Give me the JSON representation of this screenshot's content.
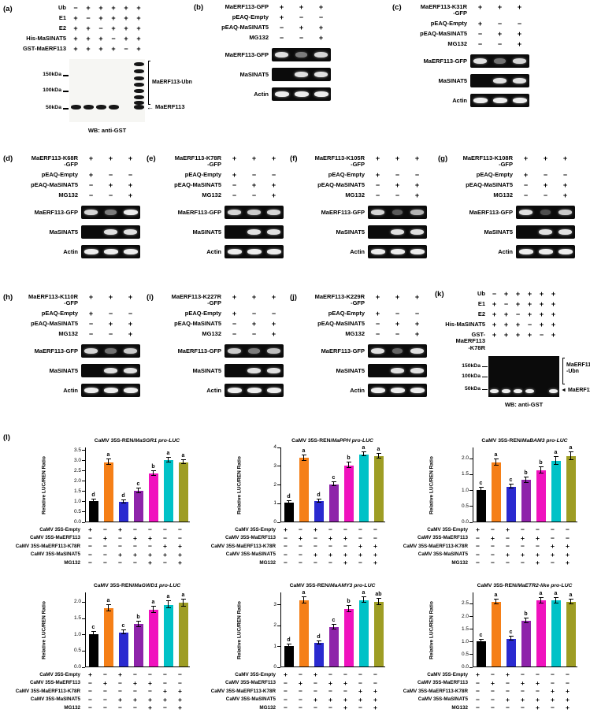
{
  "figure": {
    "panel_l_tag": "(l)",
    "panel_a": {
      "tag": "(a)",
      "matrix": [
        {
          "label": "Ub",
          "signs": [
            "−",
            "+",
            "+",
            "+",
            "+",
            "+"
          ]
        },
        {
          "label": "E1",
          "signs": [
            "+",
            "−",
            "+",
            "+",
            "+",
            "+"
          ]
        },
        {
          "label": "E2",
          "signs": [
            "+",
            "+",
            "−",
            "+",
            "+",
            "+"
          ]
        },
        {
          "label": "His-MaSINAT5",
          "signs": [
            "+",
            "+",
            "+",
            "−",
            "+",
            "+"
          ]
        },
        {
          "label": "GST-MaERF113",
          "signs": [
            "+",
            "+",
            "+",
            "+",
            "−",
            "+"
          ]
        }
      ],
      "markers": [
        "150kDa",
        "100kDa",
        "50kDa"
      ],
      "ubn_label": "MaERF113-Ubn",
      "arrow": "←",
      "arrow_label": "MaERF113",
      "wb": "WB: anti-GST"
    },
    "panel_k": {
      "tag": "(k)",
      "matrix": [
        {
          "label": "Ub",
          "signs": [
            "−",
            "+",
            "+",
            "+",
            "+",
            "+"
          ]
        },
        {
          "label": "E1",
          "signs": [
            "+",
            "−",
            "+",
            "+",
            "+",
            "+"
          ]
        },
        {
          "label": "E2",
          "signs": [
            "+",
            "+",
            "−",
            "+",
            "+",
            "+"
          ]
        },
        {
          "label": "His-MaSINAT5",
          "signs": [
            "+",
            "+",
            "+",
            "−",
            "+",
            "+"
          ]
        },
        {
          "label": "GST-MaERF113\n-K78R",
          "signs": [
            "+",
            "+",
            "+",
            "+",
            "−",
            "+"
          ]
        }
      ],
      "markers": [
        "150kDa",
        "100kDa",
        "50kDa"
      ],
      "ubn_label": "MaERF113\n-Ubn",
      "arrow": "◄",
      "arrow_label": "MaERF113",
      "wb": "WB: anti-GST"
    },
    "gfp_panels": [
      {
        "tag": "(b)",
        "rows": [
          {
            "label": "MaERF113-GFP",
            "signs": [
              "+",
              "+",
              "+"
            ]
          },
          {
            "label": "pEAQ-Empty",
            "signs": [
              "+",
              "−",
              "−"
            ]
          },
          {
            "label": "pEAQ-MaSINAT5",
            "signs": [
              "−",
              "+",
              "+"
            ]
          },
          {
            "label": "MG132",
            "signs": [
              "−",
              "−",
              "+"
            ]
          }
        ],
        "blots": [
          {
            "label": "MaERF113-GFP",
            "bands": [
              0.95,
              0.5,
              0.9
            ]
          },
          {
            "label": "MaSINAT5",
            "bands": [
              0,
              0.95,
              0.95
            ]
          },
          {
            "label": "Actin",
            "bands": [
              1,
              1,
              1
            ]
          }
        ]
      },
      {
        "tag": "(c)",
        "rows": [
          {
            "label": "MaERF113-K31R\n-GFP",
            "signs": [
              "+",
              "+",
              "+"
            ]
          },
          {
            "label": "pEAQ-Empty",
            "signs": [
              "+",
              "−",
              "−"
            ]
          },
          {
            "label": "pEAQ-MaSINAT5",
            "signs": [
              "−",
              "+",
              "+"
            ]
          },
          {
            "label": "MG132",
            "signs": [
              "−",
              "−",
              "+"
            ]
          }
        ],
        "blots": [
          {
            "label": "MaERF113-GFP",
            "bands": [
              0.95,
              0.45,
              0.9
            ]
          },
          {
            "label": "MaSINAT5",
            "bands": [
              0,
              0.95,
              0.95
            ]
          },
          {
            "label": "Actin",
            "bands": [
              1,
              1,
              1
            ]
          }
        ]
      },
      {
        "tag": "(d)",
        "rows": [
          {
            "label": "MaERF113-K68R\n-GFP",
            "signs": [
              "+",
              "+",
              "+"
            ]
          },
          {
            "label": "pEAQ-Empty",
            "signs": [
              "+",
              "−",
              "−"
            ]
          },
          {
            "label": "pEAQ-MaSINAT5",
            "signs": [
              "−",
              "+",
              "+"
            ]
          },
          {
            "label": "MG132",
            "signs": [
              "−",
              "−",
              "+"
            ]
          }
        ],
        "blots": [
          {
            "label": "MaERF113-GFP",
            "bands": [
              0.9,
              0.5,
              1
            ]
          },
          {
            "label": "MaSINAT5",
            "bands": [
              0,
              0.95,
              0.95
            ]
          },
          {
            "label": "Actin",
            "bands": [
              1,
              1,
              1
            ]
          }
        ]
      },
      {
        "tag": "(e)",
        "rows": [
          {
            "label": "MaERF113-K78R\n-GFP",
            "signs": [
              "+",
              "+",
              "+"
            ]
          },
          {
            "label": "pEAQ-Empty",
            "signs": [
              "+",
              "−",
              "−"
            ]
          },
          {
            "label": "pEAQ-MaSINAT5",
            "signs": [
              "−",
              "+",
              "+"
            ]
          },
          {
            "label": "MG132",
            "signs": [
              "−",
              "−",
              "+"
            ]
          }
        ],
        "blots": [
          {
            "label": "MaERF113-GFP",
            "bands": [
              0.9,
              0.85,
              0.9
            ]
          },
          {
            "label": "MaSINAT5",
            "bands": [
              0,
              0.95,
              0.95
            ]
          },
          {
            "label": "Actin",
            "bands": [
              1,
              1,
              1
            ]
          }
        ]
      },
      {
        "tag": "(f)",
        "rows": [
          {
            "label": "MaERF113-K105R\n-GFP",
            "signs": [
              "+",
              "+",
              "+"
            ]
          },
          {
            "label": "pEAQ-Empty",
            "signs": [
              "+",
              "−",
              "−"
            ]
          },
          {
            "label": "pEAQ-MaSINAT5",
            "signs": [
              "−",
              "+",
              "+"
            ]
          },
          {
            "label": "MG132",
            "signs": [
              "−",
              "−",
              "+"
            ]
          }
        ],
        "blots": [
          {
            "label": "MaERF113-GFP",
            "bands": [
              0.9,
              0.35,
              0.75
            ]
          },
          {
            "label": "MaSINAT5",
            "bands": [
              0,
              0.95,
              0.95
            ]
          },
          {
            "label": "Actin",
            "bands": [
              1,
              1,
              1
            ]
          }
        ]
      },
      {
        "tag": "(g)",
        "rows": [
          {
            "label": "MaERF113-K108R\n-GFP",
            "signs": [
              "+",
              "+",
              "+"
            ]
          },
          {
            "label": "pEAQ-Empty",
            "signs": [
              "+",
              "−",
              "−"
            ]
          },
          {
            "label": "pEAQ-MaSINAT5",
            "signs": [
              "−",
              "+",
              "+"
            ]
          },
          {
            "label": "MG132",
            "signs": [
              "−",
              "−",
              "+"
            ]
          }
        ],
        "blots": [
          {
            "label": "MaERF113-GFP",
            "bands": [
              0.95,
              0.3,
              0.85
            ]
          },
          {
            "label": "MaSINAT5",
            "bands": [
              0,
              0.95,
              0.95
            ]
          },
          {
            "label": "Actin",
            "bands": [
              1,
              1,
              1
            ]
          }
        ]
      },
      {
        "tag": "(h)",
        "rows": [
          {
            "label": "MaERF113-K110R\n-GFP",
            "signs": [
              "+",
              "+",
              "+"
            ]
          },
          {
            "label": "pEAQ-Empty",
            "signs": [
              "+",
              "−",
              "−"
            ]
          },
          {
            "label": "pEAQ-MaSINAT5",
            "signs": [
              "−",
              "+",
              "+"
            ]
          },
          {
            "label": "MG132",
            "signs": [
              "−",
              "−",
              "+"
            ]
          }
        ],
        "blots": [
          {
            "label": "MaERF113-GFP",
            "bands": [
              0.9,
              0.45,
              0.85
            ]
          },
          {
            "label": "MaSINAT5",
            "bands": [
              0,
              0.95,
              0.95
            ]
          },
          {
            "label": "Actin",
            "bands": [
              1,
              1,
              1
            ]
          }
        ]
      },
      {
        "tag": "(i)",
        "rows": [
          {
            "label": "MaERF113-K227R\n-GFP",
            "signs": [
              "+",
              "+",
              "+"
            ]
          },
          {
            "label": "pEAQ-Empty",
            "signs": [
              "+",
              "−",
              "−"
            ]
          },
          {
            "label": "pEAQ-MaSINAT5",
            "signs": [
              "−",
              "+",
              "+"
            ]
          },
          {
            "label": "MG132",
            "signs": [
              "−",
              "−",
              "+"
            ]
          }
        ],
        "blots": [
          {
            "label": "MaERF113-GFP",
            "bands": [
              0.85,
              0.5,
              0.8
            ]
          },
          {
            "label": "MaSINAT5",
            "bands": [
              0,
              0.95,
              0.95
            ]
          },
          {
            "label": "Actin",
            "bands": [
              1,
              1,
              1
            ]
          }
        ]
      },
      {
        "tag": "(j)",
        "rows": [
          {
            "label": "MaERF113-K229R\n-GFP",
            "signs": [
              "+",
              "+",
              "+"
            ]
          },
          {
            "label": "pEAQ-Empty",
            "signs": [
              "+",
              "−",
              "−"
            ]
          },
          {
            "label": "pEAQ-MaSINAT5",
            "signs": [
              "−",
              "+",
              "+"
            ]
          },
          {
            "label": "MG132",
            "signs": [
              "−",
              "−",
              "+"
            ]
          }
        ],
        "blots": [
          {
            "label": "MaERF113-GFP",
            "bands": [
              0.95,
              0.4,
              0.95
            ]
          },
          {
            "label": "MaSINAT5",
            "bands": [
              0,
              0.95,
              0.95
            ]
          },
          {
            "label": "Actin",
            "bands": [
              1,
              1,
              1
            ]
          }
        ]
      }
    ]
  },
  "chart_data": {
    "type": "bar",
    "ylabel": "Relative LUC/REN Ratio",
    "legend": null,
    "grid": false,
    "bar_colors": [
      "#000000",
      "#f57f17",
      "#2a2ad0",
      "#8e24aa",
      "#f012be",
      "#00c2c7",
      "#9e9d24"
    ],
    "conditions": [
      {
        "label": "CaMV 35S-Empty",
        "signs": [
          "+",
          "−",
          "+",
          "−",
          "−",
          "−",
          "−"
        ]
      },
      {
        "label": "CaMV 35S-MaERF113",
        "signs": [
          "−",
          "+",
          "−",
          "+",
          "+",
          "−",
          "−"
        ]
      },
      {
        "label": "CaMV 35S-MaERF113-K78R",
        "signs": [
          "−",
          "−",
          "−",
          "−",
          "−",
          "+",
          "+"
        ]
      },
      {
        "label": "CaMV 35S-MaSINAT5",
        "signs": [
          "−",
          "−",
          "+",
          "+",
          "+",
          "+",
          "+"
        ]
      },
      {
        "label": "MG132",
        "signs": [
          "−",
          "−",
          "−",
          "−",
          "+",
          "−",
          "+"
        ]
      }
    ],
    "charts": [
      {
        "title_prefix": "CaMV 35S-REN/",
        "title_gene": "MaSGR1 pro-LUC",
        "ymax": 3.65,
        "yticks": [
          "0.0",
          "0.5",
          "1.0",
          "1.5",
          "2.0",
          "2.5",
          "3.0",
          "3.5"
        ],
        "ytick_vals": [
          0,
          0.5,
          1,
          1.5,
          2,
          2.5,
          3,
          3.5
        ],
        "values": [
          1.0,
          2.9,
          0.95,
          1.5,
          2.35,
          3.0,
          2.9
        ],
        "errors": [
          0.07,
          0.12,
          0.07,
          0.1,
          0.12,
          0.1,
          0.1
        ],
        "letters": [
          "d",
          "a",
          "d",
          "c",
          "b",
          "a",
          "a"
        ]
      },
      {
        "title_prefix": "CaMV 35S-REN/",
        "title_gene": "MaPPH pro-LUC",
        "ymax": 4.0,
        "yticks": [
          "0",
          "1",
          "2",
          "3",
          "4"
        ],
        "ytick_vals": [
          0,
          1,
          2,
          3,
          4
        ],
        "values": [
          1.0,
          3.4,
          1.1,
          2.0,
          3.0,
          3.6,
          3.5
        ],
        "errors": [
          0.08,
          0.15,
          0.08,
          0.12,
          0.15,
          0.12,
          0.12
        ],
        "letters": [
          "d",
          "a",
          "d",
          "c",
          "b",
          "a",
          "a"
        ]
      },
      {
        "title_prefix": "CaMV 35S-REN/",
        "title_gene": "MaBAM3 pro-LUC",
        "ymax": 2.35,
        "yticks": [
          "0.0",
          "0.5",
          "1.0",
          "1.5",
          "2.0"
        ],
        "ytick_vals": [
          0,
          0.5,
          1,
          1.5,
          2
        ],
        "values": [
          1.0,
          1.85,
          1.1,
          1.3,
          1.6,
          1.9,
          2.05
        ],
        "errors": [
          0.06,
          0.1,
          0.07,
          0.08,
          0.1,
          0.12,
          0.12
        ],
        "letters": [
          "c",
          "a",
          "c",
          "b",
          "b",
          "a",
          "a"
        ]
      },
      {
        "title_prefix": "CaMV 35S-REN/",
        "title_gene": "MaGWD1 pro-LUC",
        "ymax": 2.3,
        "yticks": [
          "0.0",
          "0.5",
          "1.0",
          "1.5",
          "2.0"
        ],
        "ytick_vals": [
          0,
          0.5,
          1,
          1.5,
          2
        ],
        "values": [
          1.0,
          1.8,
          1.05,
          1.3,
          1.75,
          1.9,
          1.95
        ],
        "errors": [
          0.06,
          0.1,
          0.06,
          0.08,
          0.1,
          0.1,
          0.1
        ],
        "letters": [
          "c",
          "a",
          "c",
          "b",
          "a",
          "a",
          "a"
        ]
      },
      {
        "title_prefix": "CaMV 35S-REN/",
        "title_gene": "MaAMY3 pro-LUC",
        "ymax": 3.6,
        "yticks": [
          "0",
          "1",
          "2",
          "3"
        ],
        "ytick_vals": [
          0,
          1,
          2,
          3
        ],
        "values": [
          1.0,
          3.2,
          1.15,
          1.9,
          2.75,
          3.2,
          3.1
        ],
        "errors": [
          0.08,
          0.15,
          0.08,
          0.12,
          0.15,
          0.12,
          0.15
        ],
        "letters": [
          "d",
          "a",
          "d",
          "c",
          "b",
          "a",
          "ab"
        ]
      },
      {
        "title_prefix": "CaMV 35S-REN/",
        "title_gene": "MaETR2-like pro-LUC",
        "ymax": 2.95,
        "yticks": [
          "0.0",
          "0.5",
          "1.0",
          "1.5",
          "2.0",
          "2.5"
        ],
        "ytick_vals": [
          0,
          0.5,
          1,
          1.5,
          2,
          2.5
        ],
        "values": [
          1.0,
          2.55,
          1.1,
          1.8,
          2.6,
          2.6,
          2.55
        ],
        "errors": [
          0.06,
          0.1,
          0.07,
          0.1,
          0.1,
          0.1,
          0.1
        ],
        "letters": [
          "c",
          "a",
          "c",
          "b",
          "a",
          "a",
          "a"
        ]
      }
    ]
  }
}
